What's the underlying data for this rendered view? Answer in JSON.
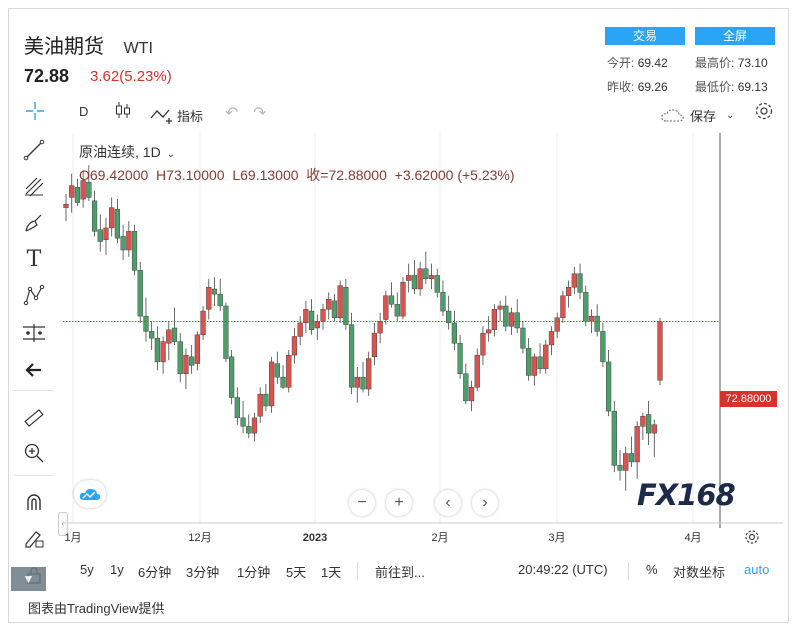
{
  "header": {
    "title": "美油期货",
    "symbol": "WTI",
    "last_price": "72.88",
    "change": "3.62(5.23%)",
    "trade_button": "交易",
    "fullscreen_button": "全屏",
    "stats": {
      "open_label": "今开:",
      "open_value": "69.42",
      "high_label": "最高价:",
      "high_value": "73.10",
      "prev_close_label": "昨收:",
      "prev_close_value": "69.26",
      "low_label": "最低价:",
      "low_value": "69.13"
    }
  },
  "toolbar": {
    "interval": "D",
    "indicators_label": "指标",
    "save_label": "保存"
  },
  "legend": {
    "series_name": "原油连续, 1D",
    "ohlc_text": "O69.42000  H73.10000  L69.13000  收=72.88000  +3.62000 (+5.23%)"
  },
  "price_label": "72.88000",
  "watermark": "FX168",
  "chart_data": {
    "type": "candlestick",
    "x_tick_labels": [
      "1月",
      "12月",
      "2023",
      "2月",
      "3月",
      "4月"
    ],
    "last_close": 72.88,
    "ohlc": [
      [
        79.6,
        80.4,
        78.8,
        79.8
      ],
      [
        80.2,
        81.6,
        79.3,
        80.9
      ],
      [
        80.8,
        81.3,
        79.7,
        79.9
      ],
      [
        80.1,
        81.8,
        79.6,
        81.2
      ],
      [
        81.1,
        82.1,
        80.0,
        80.2
      ],
      [
        80.0,
        80.6,
        77.9,
        78.2
      ],
      [
        78.3,
        79.2,
        77.0,
        77.6
      ],
      [
        77.7,
        79.0,
        76.8,
        78.4
      ],
      [
        78.4,
        80.2,
        77.9,
        79.6
      ],
      [
        79.5,
        80.1,
        77.5,
        77.8
      ],
      [
        77.9,
        78.6,
        76.5,
        77.1
      ],
      [
        77.1,
        78.8,
        76.7,
        78.2
      ],
      [
        78.2,
        78.6,
        75.6,
        75.9
      ],
      [
        75.9,
        76.4,
        72.8,
        73.2
      ],
      [
        73.2,
        74.3,
        71.7,
        72.3
      ],
      [
        72.3,
        72.9,
        71.2,
        71.9
      ],
      [
        71.9,
        72.6,
        70.0,
        70.5
      ],
      [
        70.5,
        72.0,
        69.8,
        71.7
      ],
      [
        71.6,
        72.9,
        70.6,
        72.4
      ],
      [
        72.5,
        73.7,
        71.5,
        71.7
      ],
      [
        71.7,
        72.2,
        69.3,
        69.8
      ],
      [
        69.8,
        71.3,
        68.9,
        70.9
      ],
      [
        70.8,
        71.5,
        69.8,
        70.3
      ],
      [
        70.4,
        72.3,
        70.0,
        72.1
      ],
      [
        72.1,
        73.8,
        71.8,
        73.5
      ],
      [
        73.6,
        75.4,
        73.0,
        74.9
      ],
      [
        74.8,
        75.5,
        73.8,
        74.5
      ],
      [
        74.5,
        75.4,
        73.5,
        73.8
      ],
      [
        73.8,
        74.0,
        70.5,
        70.7
      ],
      [
        70.8,
        71.2,
        68.0,
        68.4
      ],
      [
        68.4,
        69.0,
        66.8,
        67.2
      ],
      [
        67.2,
        68.2,
        66.3,
        66.7
      ],
      [
        66.7,
        67.4,
        66.0,
        66.3
      ],
      [
        66.3,
        67.5,
        65.8,
        67.2
      ],
      [
        67.3,
        69.0,
        66.9,
        68.6
      ],
      [
        68.6,
        69.2,
        67.6,
        67.9
      ],
      [
        67.9,
        70.8,
        67.5,
        70.5
      ],
      [
        70.4,
        71.1,
        69.2,
        69.6
      ],
      [
        69.6,
        70.3,
        68.9,
        69.0
      ],
      [
        69.0,
        71.2,
        68.7,
        70.9
      ],
      [
        70.9,
        72.5,
        70.4,
        72.0
      ],
      [
        72.0,
        73.2,
        71.5,
        72.8
      ],
      [
        72.8,
        74.1,
        72.2,
        73.6
      ],
      [
        73.5,
        74.2,
        72.1,
        72.4
      ],
      [
        72.5,
        73.3,
        71.8,
        72.9
      ],
      [
        72.9,
        73.9,
        72.4,
        73.6
      ],
      [
        73.6,
        74.6,
        73.0,
        74.2
      ],
      [
        74.1,
        74.5,
        72.9,
        73.1
      ],
      [
        73.1,
        75.3,
        72.8,
        75.0
      ],
      [
        74.9,
        75.4,
        72.4,
        72.7
      ],
      [
        72.7,
        73.4,
        68.6,
        69.0
      ],
      [
        69.0,
        70.2,
        68.1,
        69.6
      ],
      [
        69.6,
        70.5,
        68.7,
        68.9
      ],
      [
        68.9,
        71.1,
        68.5,
        70.7
      ],
      [
        70.8,
        72.8,
        70.3,
        72.2
      ],
      [
        72.2,
        73.4,
        71.6,
        72.9
      ],
      [
        73.0,
        74.7,
        72.7,
        74.4
      ],
      [
        74.4,
        75.2,
        73.7,
        73.9
      ],
      [
        73.9,
        74.6,
        72.9,
        73.2
      ],
      [
        73.2,
        75.5,
        73.0,
        75.2
      ],
      [
        75.3,
        76.3,
        74.6,
        75.6
      ],
      [
        75.6,
        76.5,
        74.5,
        74.8
      ],
      [
        74.8,
        76.4,
        74.4,
        76.0
      ],
      [
        76.0,
        77.0,
        75.1,
        75.4
      ],
      [
        75.4,
        76.3,
        74.8,
        75.6
      ],
      [
        75.6,
        76.0,
        74.3,
        74.6
      ],
      [
        74.6,
        75.3,
        73.2,
        73.5
      ],
      [
        73.5,
        74.4,
        72.4,
        72.8
      ],
      [
        72.8,
        73.5,
        71.2,
        71.6
      ],
      [
        71.6,
        72.1,
        69.5,
        69.8
      ],
      [
        69.8,
        70.4,
        68.0,
        68.2
      ],
      [
        68.2,
        69.4,
        67.6,
        69.0
      ],
      [
        69.0,
        71.3,
        68.8,
        70.9
      ],
      [
        70.9,
        72.6,
        70.3,
        72.2
      ],
      [
        72.2,
        73.2,
        71.7,
        72.4
      ],
      [
        72.4,
        73.9,
        72.0,
        73.6
      ],
      [
        73.6,
        74.1,
        72.9,
        73.8
      ],
      [
        73.8,
        74.4,
        72.3,
        72.6
      ],
      [
        72.6,
        73.7,
        72.1,
        73.4
      ],
      [
        73.4,
        74.2,
        72.2,
        72.5
      ],
      [
        72.5,
        72.9,
        71.0,
        71.3
      ],
      [
        71.3,
        71.9,
        69.4,
        69.7
      ],
      [
        69.7,
        71.0,
        69.1,
        70.8
      ],
      [
        70.8,
        71.6,
        69.8,
        70.1
      ],
      [
        70.1,
        71.8,
        69.8,
        71.5
      ],
      [
        71.5,
        72.6,
        70.9,
        72.3
      ],
      [
        72.3,
        73.4,
        71.9,
        73.1
      ],
      [
        73.1,
        74.7,
        72.8,
        74.4
      ],
      [
        74.4,
        75.3,
        73.7,
        74.9
      ],
      [
        74.9,
        76.1,
        74.5,
        75.7
      ],
      [
        75.7,
        76.3,
        74.2,
        74.6
      ],
      [
        74.6,
        75.0,
        72.6,
        72.9
      ],
      [
        72.9,
        73.6,
        72.2,
        73.2
      ],
      [
        73.2,
        73.9,
        72.0,
        72.3
      ],
      [
        72.3,
        72.8,
        70.2,
        70.5
      ],
      [
        70.5,
        71.2,
        67.3,
        67.6
      ],
      [
        67.6,
        68.2,
        64.0,
        64.4
      ],
      [
        64.4,
        65.3,
        63.5,
        64.1
      ],
      [
        64.1,
        65.5,
        62.9,
        65.1
      ],
      [
        65.1,
        66.1,
        64.3,
        64.6
      ],
      [
        64.6,
        67.0,
        63.6,
        66.7
      ],
      [
        66.7,
        67.5,
        65.9,
        67.3
      ],
      [
        67.4,
        68.2,
        65.6,
        66.3
      ],
      [
        66.3,
        67.1,
        64.9,
        66.8
      ],
      [
        69.42,
        73.1,
        69.13,
        72.88
      ]
    ],
    "y_range": [
      61,
      84
    ]
  },
  "bottom": {
    "ranges": [
      "5y",
      "1y",
      "6分钟",
      "3分钟",
      "1分钟",
      "5天",
      "1天"
    ],
    "goto_label": "前往到...",
    "time": "20:49:22 (UTC)",
    "percent_label": "%",
    "log_label": "对数坐标",
    "auto_label": "auto"
  },
  "credit": "图表由TradingView提供",
  "colors": {
    "up": "#d9534f",
    "down": "#4f9d6b",
    "accent": "#2aa4f4"
  }
}
